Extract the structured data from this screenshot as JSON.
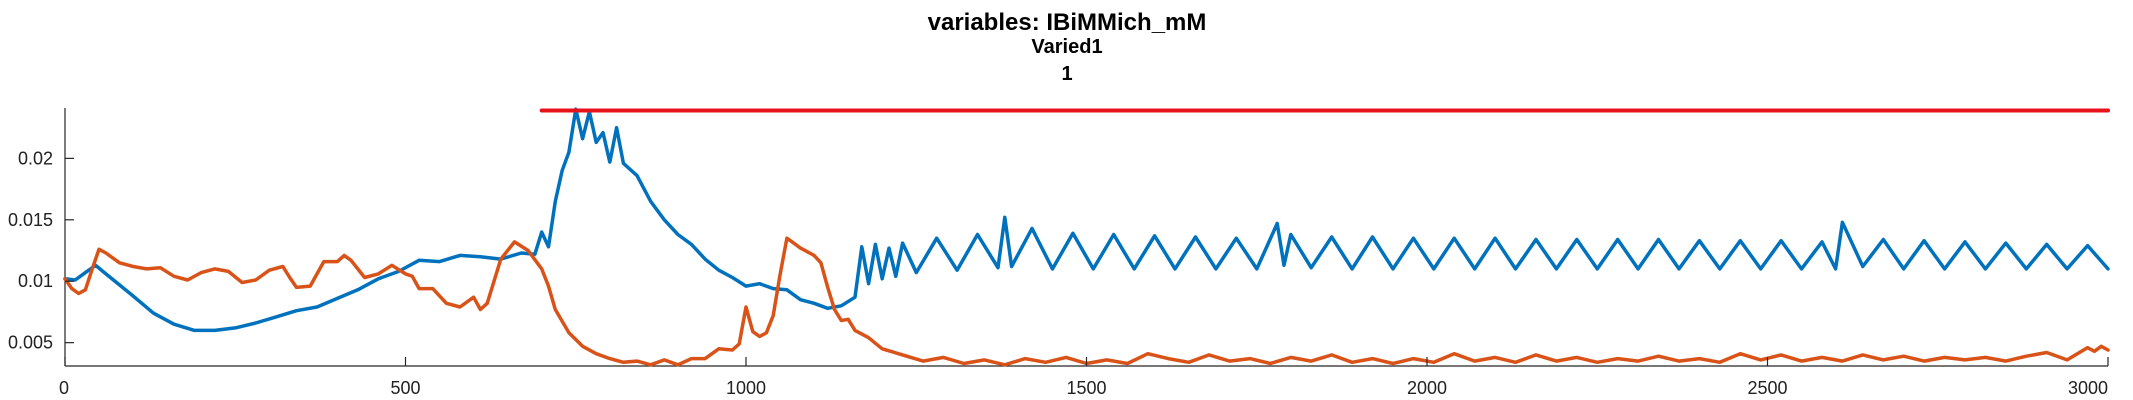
{
  "chart_data": {
    "type": "line",
    "title": "variables: IBiMMich_mM",
    "subtitle_lines": [
      "Varied1",
      "1"
    ],
    "xlabel": "",
    "ylabel": "",
    "xlim": [
      0,
      3000
    ],
    "ylim": [
      0.0031,
      0.0241
    ],
    "xticks": [
      0,
      500,
      1000,
      1500,
      2000,
      2500,
      3000
    ],
    "xtick_labels": [
      "0",
      "500",
      "1000",
      "1500",
      "2000",
      "2500",
      "3000"
    ],
    "yticks": [
      0.005,
      0.01,
      0.015,
      0.02
    ],
    "ytick_labels": [
      "0.005",
      "0.01",
      "0.015",
      "0.02"
    ],
    "grid": false,
    "legend": "none",
    "series": [
      {
        "color": "#0072BD",
        "x": [
          0,
          15,
          30,
          45,
          60,
          80,
          100,
          130,
          160,
          190,
          220,
          250,
          280,
          310,
          340,
          370,
          400,
          430,
          460,
          490,
          520,
          550,
          580,
          610,
          640,
          670,
          690,
          700,
          710,
          720,
          730,
          740,
          750,
          760,
          770,
          780,
          790,
          800,
          810,
          820,
          840,
          860,
          880,
          900,
          920,
          940,
          960,
          980,
          1000,
          1020,
          1040,
          1060,
          1080,
          1100,
          1120,
          1140,
          1160,
          1170,
          1180,
          1190,
          1200,
          1210,
          1220,
          1230,
          1250,
          1280,
          1310,
          1340,
          1370,
          1380,
          1390,
          1420,
          1450,
          1480,
          1510,
          1540,
          1570,
          1600,
          1630,
          1660,
          1690,
          1720,
          1750,
          1780,
          1790,
          1800,
          1830,
          1860,
          1890,
          1920,
          1950,
          1980,
          2010,
          2040,
          2070,
          2100,
          2130,
          2160,
          2190,
          2220,
          2250,
          2280,
          2310,
          2340,
          2370,
          2400,
          2430,
          2460,
          2490,
          2520,
          2550,
          2580,
          2600,
          2610,
          2640,
          2670,
          2700,
          2730,
          2760,
          2790,
          2820,
          2850,
          2880,
          2910,
          2940,
          2970,
          3000
        ],
        "y": [
          0.0102,
          0.0101,
          0.0107,
          0.0113,
          0.0106,
          0.0097,
          0.0088,
          0.0074,
          0.0065,
          0.006,
          0.006,
          0.0062,
          0.0066,
          0.0071,
          0.0076,
          0.0079,
          0.0086,
          0.0093,
          0.0102,
          0.0108,
          0.0117,
          0.0116,
          0.0121,
          0.012,
          0.0118,
          0.0123,
          0.0122,
          0.014,
          0.0128,
          0.0165,
          0.019,
          0.0205,
          0.024,
          0.0216,
          0.0238,
          0.0213,
          0.0221,
          0.0197,
          0.0225,
          0.0196,
          0.0186,
          0.0165,
          0.015,
          0.0138,
          0.013,
          0.0118,
          0.0109,
          0.0103,
          0.0096,
          0.0098,
          0.0094,
          0.0093,
          0.0085,
          0.0082,
          0.0078,
          0.008,
          0.0087,
          0.0128,
          0.0098,
          0.013,
          0.0102,
          0.0127,
          0.0104,
          0.0131,
          0.0107,
          0.0135,
          0.0109,
          0.0138,
          0.0111,
          0.0152,
          0.0112,
          0.0143,
          0.011,
          0.0139,
          0.011,
          0.0138,
          0.011,
          0.0137,
          0.011,
          0.0136,
          0.011,
          0.0135,
          0.011,
          0.0147,
          0.0113,
          0.0138,
          0.0111,
          0.0136,
          0.011,
          0.0136,
          0.011,
          0.0135,
          0.011,
          0.0135,
          0.011,
          0.0135,
          0.011,
          0.0134,
          0.011,
          0.0134,
          0.011,
          0.0134,
          0.011,
          0.0134,
          0.011,
          0.0133,
          0.011,
          0.0133,
          0.011,
          0.0133,
          0.011,
          0.0132,
          0.011,
          0.0148,
          0.0112,
          0.0134,
          0.011,
          0.0133,
          0.011,
          0.0132,
          0.011,
          0.0131,
          0.011,
          0.013,
          0.011,
          0.0129,
          0.011
        ]
      },
      {
        "color": "#D95319",
        "x": [
          0,
          10,
          20,
          30,
          40,
          50,
          60,
          80,
          100,
          120,
          140,
          160,
          180,
          200,
          220,
          240,
          260,
          280,
          300,
          320,
          330,
          340,
          360,
          380,
          400,
          410,
          420,
          440,
          460,
          480,
          500,
          510,
          520,
          540,
          560,
          580,
          600,
          610,
          620,
          640,
          660,
          680,
          700,
          710,
          720,
          740,
          760,
          780,
          800,
          820,
          840,
          860,
          880,
          900,
          920,
          940,
          960,
          980,
          990,
          1000,
          1010,
          1020,
          1030,
          1040,
          1050,
          1060,
          1070,
          1080,
          1100,
          1110,
          1120,
          1130,
          1140,
          1150,
          1160,
          1180,
          1200,
          1230,
          1260,
          1290,
          1320,
          1350,
          1380,
          1410,
          1440,
          1470,
          1500,
          1530,
          1560,
          1590,
          1620,
          1650,
          1680,
          1710,
          1740,
          1770,
          1800,
          1830,
          1860,
          1890,
          1920,
          1950,
          1980,
          2010,
          2040,
          2070,
          2100,
          2130,
          2160,
          2190,
          2220,
          2250,
          2280,
          2310,
          2340,
          2370,
          2400,
          2430,
          2460,
          2490,
          2520,
          2550,
          2580,
          2610,
          2640,
          2670,
          2700,
          2730,
          2760,
          2790,
          2820,
          2850,
          2880,
          2910,
          2940,
          2970,
          2980,
          2990,
          3000
        ],
        "y": [
          0.0102,
          0.0094,
          0.009,
          0.0093,
          0.011,
          0.0126,
          0.0123,
          0.0115,
          0.0112,
          0.011,
          0.0111,
          0.0104,
          0.0101,
          0.0107,
          0.011,
          0.0108,
          0.0099,
          0.0101,
          0.0109,
          0.0112,
          0.0103,
          0.0095,
          0.0096,
          0.0116,
          0.0116,
          0.0121,
          0.0117,
          0.0103,
          0.0106,
          0.0113,
          0.0106,
          0.0104,
          0.0094,
          0.0094,
          0.0082,
          0.0079,
          0.0087,
          0.0077,
          0.0082,
          0.0118,
          0.0132,
          0.0125,
          0.011,
          0.0096,
          0.0077,
          0.0058,
          0.0047,
          0.0041,
          0.0037,
          0.0034,
          0.0035,
          0.0032,
          0.0036,
          0.0032,
          0.0037,
          0.0037,
          0.0045,
          0.0044,
          0.0049,
          0.0079,
          0.0059,
          0.0055,
          0.0058,
          0.0072,
          0.0105,
          0.0135,
          0.0131,
          0.0127,
          0.0121,
          0.0115,
          0.0095,
          0.0077,
          0.0068,
          0.0069,
          0.006,
          0.0054,
          0.0045,
          0.004,
          0.0035,
          0.0038,
          0.0033,
          0.0036,
          0.0032,
          0.0037,
          0.0034,
          0.0038,
          0.0033,
          0.0036,
          0.0033,
          0.0041,
          0.0037,
          0.0034,
          0.004,
          0.0035,
          0.0037,
          0.0033,
          0.0038,
          0.0035,
          0.004,
          0.0034,
          0.0037,
          0.0033,
          0.0037,
          0.0034,
          0.0041,
          0.0035,
          0.0038,
          0.0034,
          0.004,
          0.0035,
          0.0038,
          0.0034,
          0.0037,
          0.0035,
          0.0039,
          0.0035,
          0.0037,
          0.0034,
          0.0041,
          0.0036,
          0.004,
          0.0035,
          0.0038,
          0.0035,
          0.004,
          0.0036,
          0.0039,
          0.0035,
          0.0038,
          0.0036,
          0.0038,
          0.0035,
          0.0039,
          0.0042,
          0.0036,
          0.0046,
          0.0043,
          0.0047,
          0.0044
        ]
      },
      {
        "color": "#E8131A",
        "x": [
          700,
          3000
        ],
        "y": [
          0.0239,
          0.0239
        ]
      }
    ]
  }
}
